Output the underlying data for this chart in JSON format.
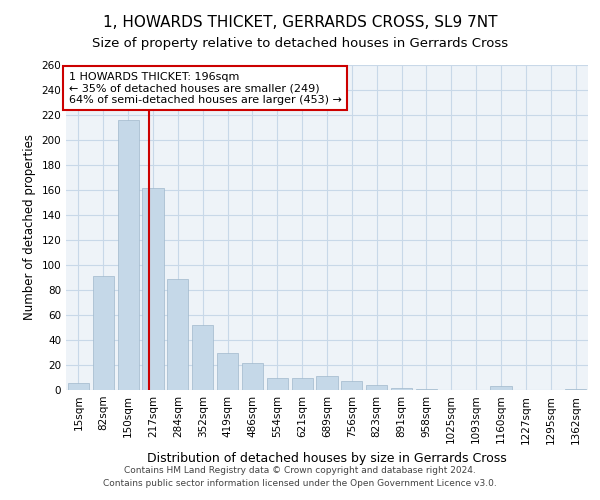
{
  "title": "1, HOWARDS THICKET, GERRARDS CROSS, SL9 7NT",
  "subtitle": "Size of property relative to detached houses in Gerrards Cross",
  "xlabel": "Distribution of detached houses by size in Gerrards Cross",
  "ylabel": "Number of detached properties",
  "footer_line1": "Contains HM Land Registry data © Crown copyright and database right 2024.",
  "footer_line2": "Contains public sector information licensed under the Open Government Licence v3.0.",
  "bins": [
    "15sqm",
    "82sqm",
    "150sqm",
    "217sqm",
    "284sqm",
    "352sqm",
    "419sqm",
    "486sqm",
    "554sqm",
    "621sqm",
    "689sqm",
    "756sqm",
    "823sqm",
    "891sqm",
    "958sqm",
    "1025sqm",
    "1093sqm",
    "1160sqm",
    "1227sqm",
    "1295sqm",
    "1362sqm"
  ],
  "bar_values": [
    6,
    91,
    216,
    162,
    89,
    52,
    30,
    22,
    10,
    10,
    11,
    7,
    4,
    2,
    1,
    0,
    0,
    3,
    0,
    0,
    1
  ],
  "bar_color": "#c5d8e8",
  "bar_edge_color": "#a0b8cc",
  "property_line_x": 2.85,
  "property_line_color": "#cc0000",
  "annotation_text": "1 HOWARDS THICKET: 196sqm\n← 35% of detached houses are smaller (249)\n64% of semi-detached houses are larger (453) →",
  "annotation_box_color": "#cc0000",
  "ylim": [
    0,
    260
  ],
  "yticks": [
    0,
    20,
    40,
    60,
    80,
    100,
    120,
    140,
    160,
    180,
    200,
    220,
    240,
    260
  ],
  "grid_color": "#c8d8e8",
  "background_color": "#eef3f8",
  "title_fontsize": 11,
  "subtitle_fontsize": 9.5,
  "xlabel_fontsize": 9,
  "ylabel_fontsize": 8.5,
  "tick_fontsize": 7.5,
  "annotation_fontsize": 8,
  "footer_fontsize": 6.5
}
